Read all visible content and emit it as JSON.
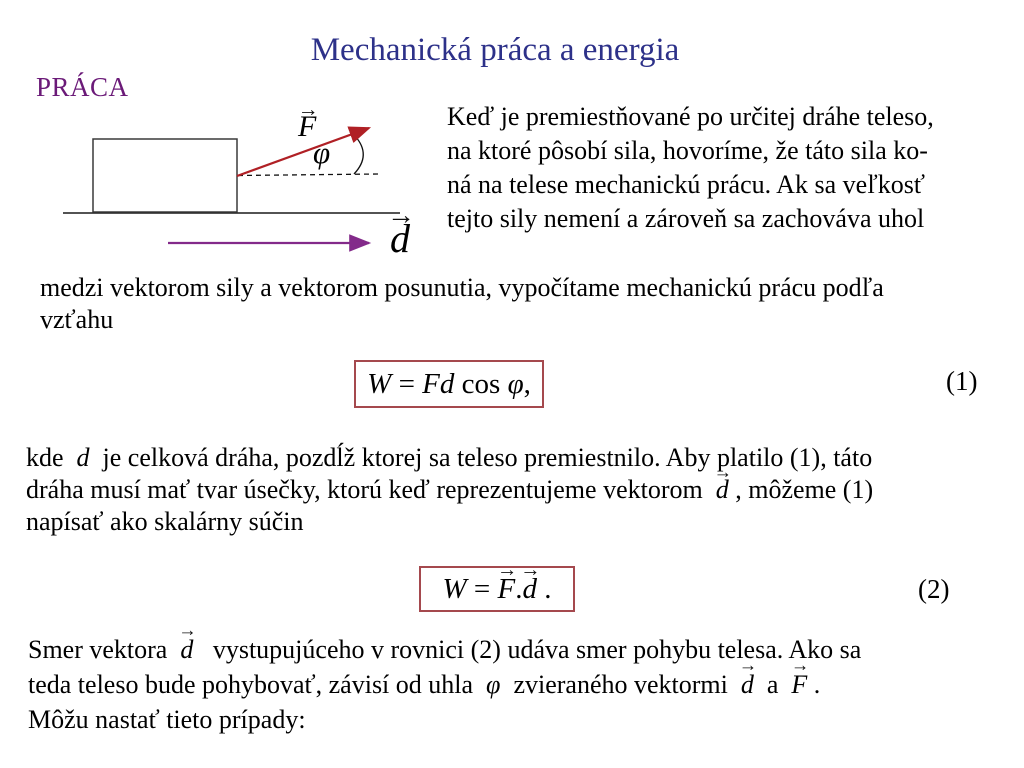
{
  "slide": {
    "title": "Mechanická práca a energia",
    "section_label": "PRÁCA"
  },
  "colors": {
    "title_text": "#2d3189",
    "section_text": "#6b1a78",
    "force_arrow": "#b02025",
    "displacement_arrow": "#832a8a",
    "equation_box_border": "#a5494e",
    "body_text": "#000000"
  },
  "symbols": {
    "vec_arrow": "→"
  },
  "diagram": {
    "force_label": "F",
    "angle_label": "φ",
    "displacement_label": "d"
  },
  "intro_paragraph": {
    "lines": [
      "Keď je premiestňované po určitej dráhe teleso,",
      "na ktoré pôsobí sila, hovoríme, že táto sila ko-",
      "ná na telese mechanickú prácu. Ak sa veľkosť",
      "tejto sily nemení a zároveň sa zachováva uhol"
    ]
  },
  "mid_paragraph": {
    "lines": [
      "medzi vektorom sily a vektorom posunutia, vypočítame mechanickú prácu podľa",
      "vzťahu"
    ]
  },
  "equation1": {
    "number": "(1)",
    "segments": [
      {
        "t": "W",
        "i": true
      },
      {
        "t": " = "
      },
      {
        "t": "Fd",
        "i": true
      },
      {
        "t": " cos "
      },
      {
        "t": "φ",
        "i": true
      },
      {
        "t": ","
      }
    ]
  },
  "after_eq1_paragraph": {
    "line1": [
      {
        "t": "kde  "
      },
      {
        "t": "d",
        "i": true
      },
      {
        "t": "  je celková dráha, pozdĺž ktorej sa teleso premiestnilo. Aby platilo (1), táto"
      }
    ],
    "line2": [
      {
        "t": "dráha musí mať tvar úsečky, ktorú keď reprezentujeme vektorom  "
      },
      {
        "t": "d",
        "v": true
      },
      {
        "t": " , môžeme (1)"
      }
    ],
    "line3": [
      {
        "t": "napísať ako skalárny súčin"
      }
    ]
  },
  "equation2": {
    "number": "(2)",
    "segments": [
      {
        "t": "W",
        "i": true
      },
      {
        "t": " = "
      },
      {
        "t": "F",
        "v": true
      },
      {
        "t": "."
      },
      {
        "t": "d",
        "v": true
      },
      {
        "t": " ."
      }
    ]
  },
  "closing_paragraph": {
    "line1": [
      {
        "t": "Smer vektora  "
      },
      {
        "t": "d",
        "v": true
      },
      {
        "t": "   vystupujúceho v rovnici (2) udáva smer pohybu telesa. Ako sa"
      }
    ],
    "line2": [
      {
        "t": "teda teleso bude pohybovať, závisí od uhla  "
      },
      {
        "t": "φ",
        "i": true
      },
      {
        "t": "  zvieraného vektormi  "
      },
      {
        "t": "d",
        "v": true
      },
      {
        "t": "  a  "
      },
      {
        "t": "F",
        "v": true
      },
      {
        "t": " ."
      }
    ],
    "line3": [
      {
        "t": "Môžu nastať tieto prípady:"
      }
    ]
  }
}
